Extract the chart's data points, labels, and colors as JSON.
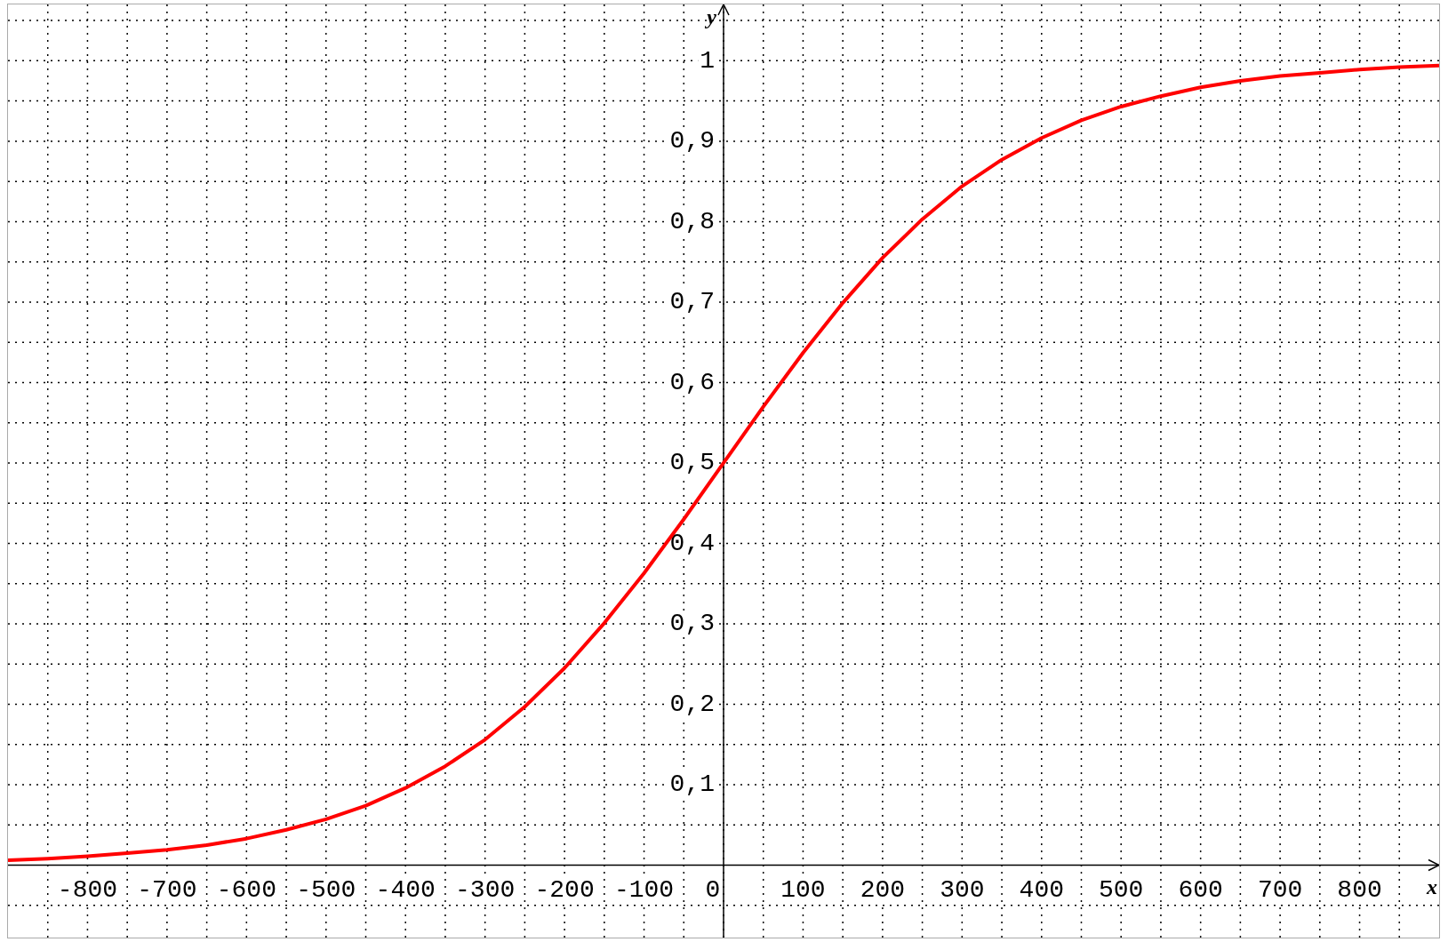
{
  "chart_data": {
    "type": "line",
    "xlabel": "x",
    "ylabel": "y",
    "xlim": [
      -900,
      900
    ],
    "ylim": [
      -0.09,
      1.07
    ],
    "xticks": [
      {
        "value": -850,
        "label": null
      },
      -800,
      {
        "value": -750,
        "label": null
      },
      -700,
      {
        "value": -650,
        "label": null
      },
      -600,
      {
        "value": -550,
        "label": null
      },
      -500,
      {
        "value": -450,
        "label": null
      },
      -400,
      {
        "value": -350,
        "label": null
      },
      -300,
      {
        "value": -250,
        "label": null
      },
      -200,
      {
        "value": -150,
        "label": null
      },
      -100,
      {
        "value": -50,
        "label": null
      },
      0,
      {
        "value": 50,
        "label": null
      },
      100,
      {
        "value": 150,
        "label": null
      },
      200,
      {
        "value": 250,
        "label": null
      },
      300,
      {
        "value": 350,
        "label": null
      },
      400,
      {
        "value": 450,
        "label": null
      },
      500,
      {
        "value": 550,
        "label": null
      },
      600,
      {
        "value": 650,
        "label": null
      },
      700,
      {
        "value": 750,
        "label": null
      },
      800,
      {
        "value": 850,
        "label": null
      }
    ],
    "yticks": [
      {
        "value": -0.05,
        "label": null
      },
      {
        "value": 0.05,
        "label": null
      },
      {
        "value": 0.1,
        "label": "0,1"
      },
      {
        "value": 0.15,
        "label": null
      },
      {
        "value": 0.2,
        "label": "0,2"
      },
      {
        "value": 0.25,
        "label": null
      },
      {
        "value": 0.3,
        "label": "0,3"
      },
      {
        "value": 0.35,
        "label": null
      },
      {
        "value": 0.4,
        "label": "0,4"
      },
      {
        "value": 0.45,
        "label": null
      },
      {
        "value": 0.5,
        "label": "0,5"
      },
      {
        "value": 0.55,
        "label": null
      },
      {
        "value": 0.6,
        "label": "0,6"
      },
      {
        "value": 0.65,
        "label": null
      },
      {
        "value": 0.7,
        "label": "0,7"
      },
      {
        "value": 0.75,
        "label": null
      },
      {
        "value": 0.8,
        "label": "0,8"
      },
      {
        "value": 0.85,
        "label": null
      },
      {
        "value": 0.9,
        "label": "0,9"
      },
      {
        "value": 0.95,
        "label": null
      },
      1,
      {
        "value": 1.05,
        "label": null
      }
    ],
    "grid": true,
    "marker": "none",
    "line_style": "solid",
    "series": [
      {
        "color": "#ff0000",
        "x": [
          -900,
          -850,
          -800,
          -750,
          -700,
          -650,
          -600,
          -550,
          -500,
          -450,
          -400,
          -350,
          -300,
          -250,
          -200,
          -150,
          -100,
          -50,
          0,
          50,
          100,
          150,
          200,
          250,
          300,
          350,
          400,
          450,
          500,
          550,
          600,
          650,
          700,
          750,
          800,
          850,
          900
        ],
        "values": [
          0.006,
          0.008,
          0.011,
          0.015,
          0.019,
          0.025,
          0.033,
          0.044,
          0.057,
          0.074,
          0.096,
          0.123,
          0.156,
          0.197,
          0.245,
          0.301,
          0.363,
          0.43,
          0.5,
          0.57,
          0.637,
          0.699,
          0.755,
          0.803,
          0.844,
          0.877,
          0.904,
          0.926,
          0.943,
          0.956,
          0.967,
          0.975,
          0.981,
          0.985,
          0.989,
          0.992,
          0.994
        ]
      }
    ]
  }
}
